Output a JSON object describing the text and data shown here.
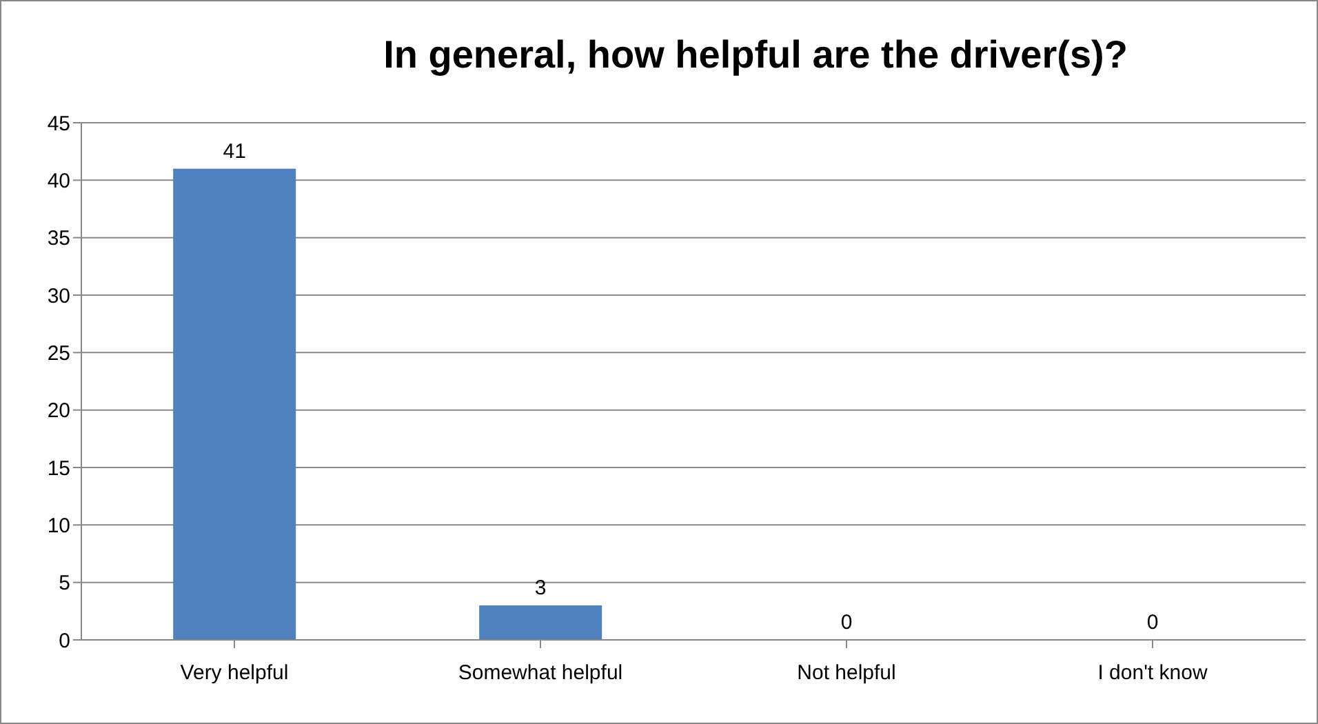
{
  "chart_data": {
    "type": "bar",
    "title": "In general, how helpful are the driver(s)?",
    "categories": [
      "Very helpful",
      "Somewhat helpful",
      "Not helpful",
      "I don't know"
    ],
    "values": [
      41,
      3,
      0,
      0
    ],
    "color": "#4f81bd",
    "ylim": [
      0,
      45
    ],
    "yticks": [
      0,
      5,
      10,
      15,
      20,
      25,
      30,
      35,
      40,
      45
    ],
    "grid": "y",
    "data_labels": true
  }
}
